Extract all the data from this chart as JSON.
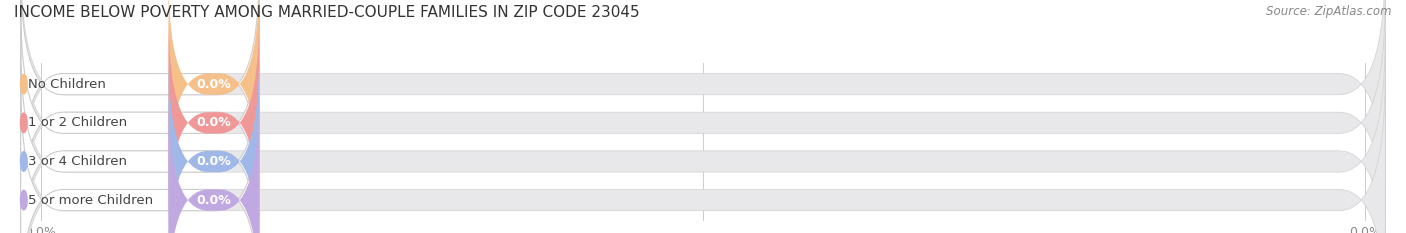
{
  "title": "INCOME BELOW POVERTY AMONG MARRIED-COUPLE FAMILIES IN ZIP CODE 23045",
  "source": "Source: ZipAtlas.com",
  "categories": [
    "No Children",
    "1 or 2 Children",
    "3 or 4 Children",
    "5 or more Children"
  ],
  "values": [
    0.0,
    0.0,
    0.0,
    0.0
  ],
  "bar_colors": [
    "#f5c08a",
    "#f09898",
    "#a0b8e8",
    "#c0a8e0"
  ],
  "bar_border_colors": [
    "#e8a84a",
    "#d87878",
    "#7098d0",
    "#9878c8"
  ],
  "background_color": "#ffffff",
  "plot_bg_color": "#f5f5f5",
  "title_fontsize": 11,
  "label_fontsize": 9.5,
  "value_fontsize": 9,
  "tick_fontsize": 9,
  "source_fontsize": 8.5
}
